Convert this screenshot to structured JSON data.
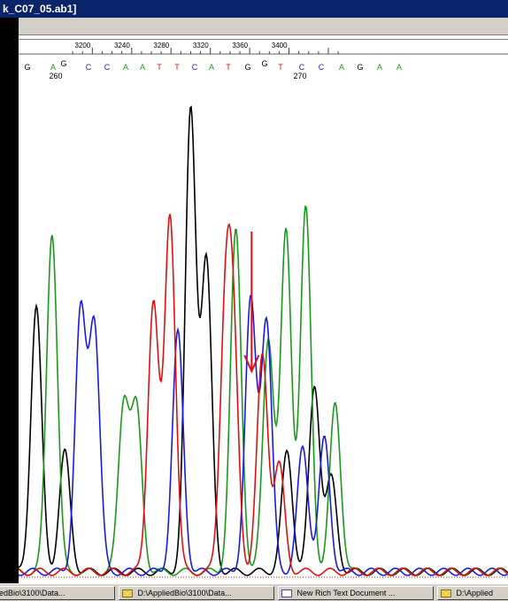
{
  "window": {
    "title": "k_C07_05.ab1]"
  },
  "ruler": {
    "ticks": [
      "3200",
      "3240",
      "3280",
      "3320",
      "3360",
      "3400"
    ]
  },
  "basecalls": {
    "bases": [
      "G",
      "A",
      "G",
      "C",
      "C",
      "A",
      "A",
      "T",
      "T",
      "C",
      "A",
      "T",
      "G",
      "G",
      "T",
      "C",
      "C",
      "A",
      "G",
      "A",
      "A"
    ],
    "positions": [
      "260",
      "270"
    ]
  },
  "colors": {
    "A": "#1a9a1a",
    "C": "#1a1ae0",
    "G": "#000000",
    "T": "#e01010",
    "arrow": "#e01010"
  },
  "annotation": {
    "arrow": "red-down-arrow",
    "points_to_trace_position": 3362
  },
  "taskbar": {
    "items": [
      {
        "label": "edBio\\3100\\Data...",
        "icon": "folder-icon"
      },
      {
        "label": "D:\\AppliedBio\\3100\\Data...",
        "icon": "folder-icon"
      },
      {
        "label": "New Rich Text Document ...",
        "icon": "document-icon"
      },
      {
        "label": "D:\\Applied",
        "icon": "folder-icon"
      }
    ]
  },
  "chart_data": {
    "type": "line",
    "title": "",
    "xlabel": "",
    "ylabel": "",
    "x_ticks": [
      3200,
      3240,
      3280,
      3320,
      3360,
      3400
    ],
    "series": [
      {
        "base": "G",
        "peaks": [
          [
            3143,
            300
          ],
          [
            3172,
            135
          ],
          [
            3300,
            520
          ],
          [
            3316,
            350
          ],
          [
            3398,
            135
          ],
          [
            3426,
            210
          ],
          [
            3443,
            105
          ]
        ]
      },
      {
        "base": "A",
        "peaks": [
          [
            3159,
            385
          ],
          [
            3232,
            190
          ],
          [
            3245,
            180
          ],
          [
            3346,
            385
          ],
          [
            3379,
            265
          ],
          [
            3397,
            385
          ],
          [
            3417,
            410
          ],
          [
            3447,
            190
          ]
        ]
      },
      {
        "base": "C",
        "peaks": [
          [
            3188,
            290
          ],
          [
            3202,
            280
          ],
          [
            3287,
            270
          ],
          [
            3361,
            305
          ],
          [
            3377,
            285
          ],
          [
            3414,
            140
          ],
          [
            3436,
            150
          ]
        ]
      },
      {
        "base": "T",
        "peaks": [
          [
            3262,
            305
          ],
          [
            3279,
            405
          ],
          [
            3335,
            260
          ],
          [
            3343,
            250
          ],
          [
            3373,
            245
          ],
          [
            3390,
            120
          ]
        ]
      }
    ]
  }
}
